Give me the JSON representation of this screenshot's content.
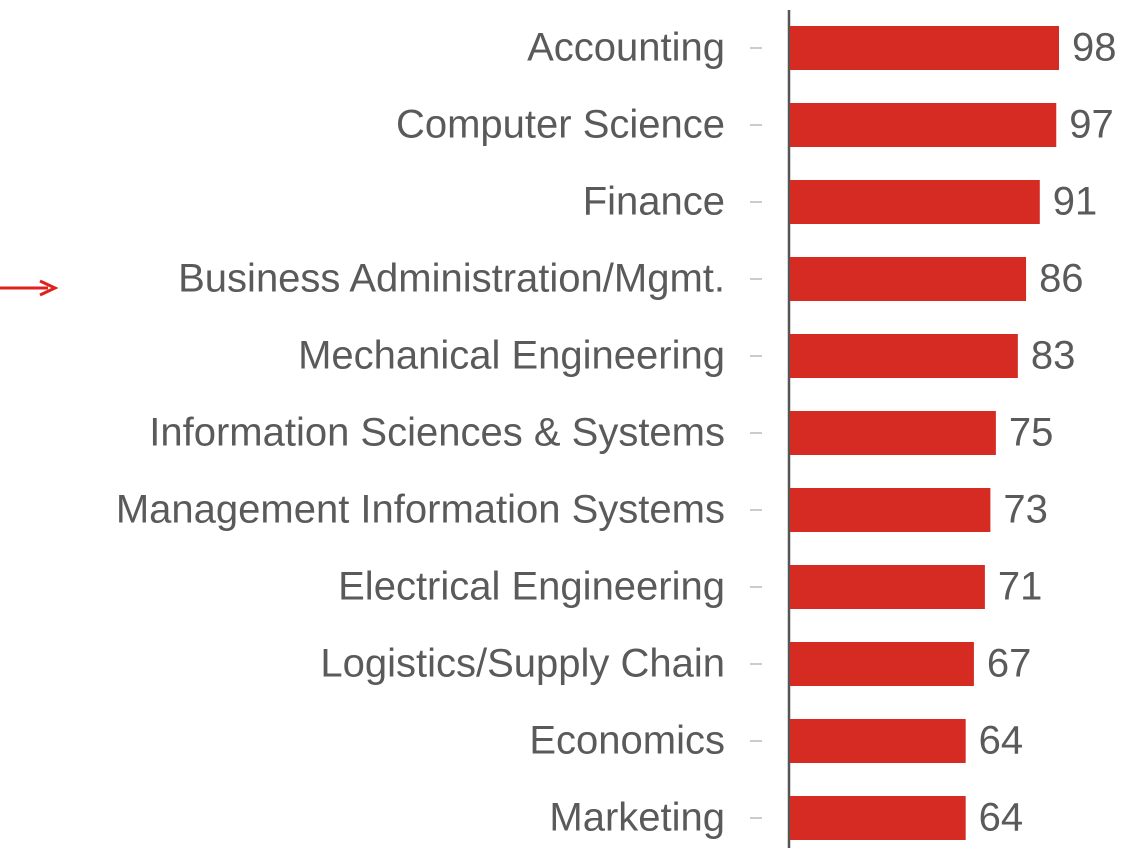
{
  "chart_data": {
    "type": "bar",
    "orientation": "horizontal",
    "categories": [
      "Accounting",
      "Computer Science",
      "Finance",
      "Business Administration/Mgmt.",
      "Mechanical Engineering",
      "Information Sciences & Systems",
      "Management Information Systems",
      "Electrical Engineering",
      "Logistics/Supply Chain",
      "Economics",
      "Marketing"
    ],
    "values": [
      98,
      97,
      91,
      86,
      83,
      75,
      73,
      71,
      67,
      64,
      64
    ],
    "color": "#d62b22"
  }
}
